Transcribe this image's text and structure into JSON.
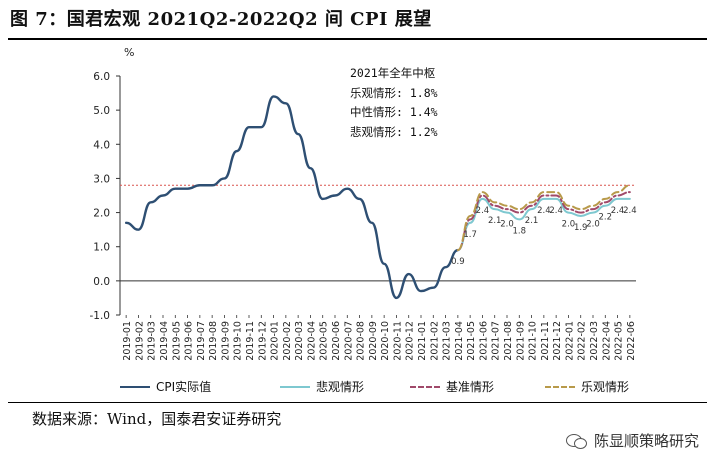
{
  "title": "图 7：国君宏观 2021Q2-2022Q2 间 CPI 展望",
  "source": "数据来源：Wind，国泰君安证券研究",
  "watermark": "陈显顺策略研究",
  "watermark_icon": "wechat-icon",
  "annotation": {
    "heading": "2021年全年中枢",
    "lines": [
      "乐观情形: 1.8%",
      "中性情形: 1.4%",
      "悲观情形: 1.2%"
    ]
  },
  "chart_data": {
    "type": "line",
    "ylabel": "%",
    "ylim": [
      -1.0,
      6.0
    ],
    "yticks": [
      -1.0,
      0.0,
      1.0,
      2.0,
      3.0,
      4.0,
      5.0,
      6.0
    ],
    "ytick_labels": [
      "-1.0",
      "0.0",
      "1.0",
      "2.0",
      "3.0",
      "4.0",
      "5.0",
      "6.0"
    ],
    "grid": false,
    "legend_position": "bottom",
    "categories": [
      "2019-01",
      "2019-02",
      "2019-03",
      "2019-04",
      "2019-05",
      "2019-06",
      "2019-07",
      "2019-08",
      "2019-09",
      "2019-10",
      "2019-11",
      "2019-12",
      "2020-01",
      "2020-02",
      "2020-03",
      "2020-04",
      "2020-05",
      "2020-06",
      "2020-07",
      "2020-08",
      "2020-09",
      "2020-10",
      "2020-11",
      "2020-12",
      "2021-01",
      "2021-02",
      "2021-03",
      "2021-04",
      "2021-05",
      "2021-06",
      "2021-07",
      "2021-08",
      "2021-09",
      "2021-10",
      "2021-11",
      "2021-12",
      "2022-01",
      "2022-02",
      "2022-03",
      "2022-04",
      "2022-05",
      "2022-06"
    ],
    "reference_line": {
      "value": 2.8,
      "color": "#d9534f"
    },
    "series": [
      {
        "name": "CPI实际值",
        "color": "#2e4f73",
        "style": "solid",
        "values": [
          1.7,
          1.5,
          2.3,
          2.5,
          2.7,
          2.7,
          2.8,
          2.8,
          3.0,
          3.8,
          4.5,
          4.5,
          5.4,
          5.2,
          4.3,
          3.3,
          2.4,
          2.5,
          2.7,
          2.4,
          1.7,
          0.5,
          -0.5,
          0.2,
          -0.3,
          -0.2,
          0.4,
          0.9,
          null,
          null,
          null,
          null,
          null,
          null,
          null,
          null,
          null,
          null,
          null,
          null,
          null,
          null
        ]
      },
      {
        "name": "悲观情形",
        "color": "#7ec8d0",
        "style": "solid",
        "values": [
          null,
          null,
          null,
          null,
          null,
          null,
          null,
          null,
          null,
          null,
          null,
          null,
          null,
          null,
          null,
          null,
          null,
          null,
          null,
          null,
          null,
          null,
          null,
          null,
          null,
          null,
          null,
          0.9,
          1.7,
          2.4,
          2.1,
          2.0,
          1.8,
          2.1,
          2.4,
          2.4,
          2.0,
          1.9,
          2.0,
          2.2,
          2.4,
          2.4
        ]
      },
      {
        "name": "基准情形",
        "color": "#a04a6a",
        "style": "dashdot",
        "values": [
          null,
          null,
          null,
          null,
          null,
          null,
          null,
          null,
          null,
          null,
          null,
          null,
          null,
          null,
          null,
          null,
          null,
          null,
          null,
          null,
          null,
          null,
          null,
          null,
          null,
          null,
          null,
          0.9,
          1.8,
          2.5,
          2.2,
          2.1,
          2.0,
          2.2,
          2.5,
          2.5,
          2.1,
          2.0,
          2.1,
          2.3,
          2.5,
          2.6
        ]
      },
      {
        "name": "乐观情形",
        "color": "#b89a4a",
        "style": "dashed",
        "values": [
          null,
          null,
          null,
          null,
          null,
          null,
          null,
          null,
          null,
          null,
          null,
          null,
          null,
          null,
          null,
          null,
          null,
          null,
          null,
          null,
          null,
          null,
          null,
          null,
          null,
          null,
          null,
          0.9,
          1.9,
          2.6,
          2.3,
          2.2,
          2.1,
          2.3,
          2.6,
          2.6,
          2.2,
          2.1,
          2.2,
          2.4,
          2.6,
          2.8
        ]
      }
    ],
    "data_labels": [
      {
        "series": 1,
        "index": 27,
        "text": "0.9"
      },
      {
        "series": 1,
        "index": 28,
        "text": "1.7"
      },
      {
        "series": 1,
        "index": 29,
        "text": "2.4"
      },
      {
        "series": 1,
        "index": 30,
        "text": "2.1"
      },
      {
        "series": 1,
        "index": 31,
        "text": "2.0"
      },
      {
        "series": 1,
        "index": 32,
        "text": "1.8"
      },
      {
        "series": 1,
        "index": 33,
        "text": "2.1"
      },
      {
        "series": 1,
        "index": 34,
        "text": "2.4"
      },
      {
        "series": 1,
        "index": 35,
        "text": "2.4"
      },
      {
        "series": 1,
        "index": 36,
        "text": "2.0"
      },
      {
        "series": 1,
        "index": 37,
        "text": "1.9"
      },
      {
        "series": 1,
        "index": 38,
        "text": "2.0"
      },
      {
        "series": 1,
        "index": 39,
        "text": "2.2"
      },
      {
        "series": 1,
        "index": 40,
        "text": "2.4"
      },
      {
        "series": 1,
        "index": 41,
        "text": "2.4"
      }
    ]
  }
}
